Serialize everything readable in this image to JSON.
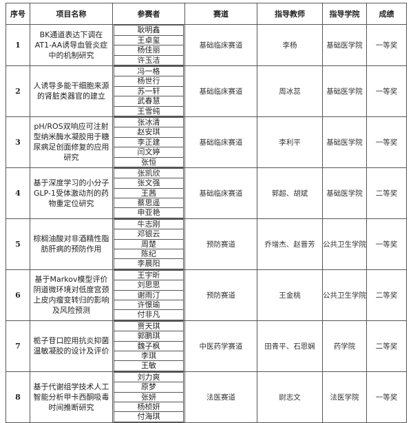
{
  "headers": [
    "序号",
    "项目名称",
    "参赛者",
    "赛道",
    "指导教师",
    "指导学院",
    "成绩"
  ],
  "rows": [
    {
      "no": "1",
      "title": "BK通道表达下调在AT1-AA诱导血管炎症中的机制研究",
      "members": [
        "耿明鑫",
        "王卓玺",
        "杨佳丽",
        "许玉洁"
      ],
      "track": "基础临床赛道",
      "teacher": "李杨",
      "college": "基础医学院",
      "result": "一等奖"
    },
    {
      "no": "2",
      "title": "人诱导多能干细胞来源的肾脏类器官的建立",
      "members": [
        "冯一格",
        "杨世行",
        "苏一轩",
        "武春慧",
        "王雪纯"
      ],
      "track": "基础临床赛道",
      "teacher": "周冰蕊",
      "college": "基础医学院",
      "result": "一等奖"
    },
    {
      "no": "3",
      "title": "pH/ROS双响应可注射型纳米酶水凝胶用于糖尿病足创面修复的应用研究",
      "members": [
        "张冰清",
        "赵安琪",
        "李正建",
        "闫文婷",
        "张恒"
      ],
      "track": "基础临床赛道",
      "teacher": "李利平",
      "college": "基础医学院",
      "result": "一等奖"
    },
    {
      "no": "4",
      "title": "基于深度学习的小分子GLP-1受体激动剂的药物重定位研究",
      "members": [
        "张凯欣",
        "张文强",
        "王茜",
        "蔡思遥",
        "申亚艳"
      ],
      "track": "基础临床赛道",
      "teacher": "郭超、胡斌",
      "college": "基础医学院",
      "result": "二等奖"
    },
    {
      "no": "5",
      "title": "棕榈油酸对非酒精性脂肪肝病的预防作用",
      "members": [
        "牛志刚",
        "邓银云",
        "周楚",
        "陈纪",
        "李晨阳"
      ],
      "track": "预防赛道",
      "teacher": "乔增杰、赵晋芳",
      "college": "公共卫生学院",
      "result": "一等奖"
    },
    {
      "no": "6",
      "title": "基于Markov模型评价阴道微环境对低度宫颈上皮内瘤变转归的影响及风险预测",
      "members": [
        "王宇昕",
        "刘思思",
        "谢雨汀",
        "许憬瑜",
        "付非凡"
      ],
      "track": "预防赛道",
      "teacher": "王金桃",
      "college": "公共卫生学院",
      "result": "二等奖"
    },
    {
      "no": "7",
      "title": "栀子苷口腔用抗炎抑菌温敏凝胶的设计及评价",
      "members": [
        "贾天琪",
        "郭鹏琪",
        "魏子枫",
        "李琪",
        "王敏"
      ],
      "track": "中医药学赛道",
      "teacher": "田青平、石恩娴",
      "college": "药学院",
      "result": "二等奖"
    },
    {
      "no": "8",
      "title": "基于代谢组学技术人工智能分析甲卡西酮吸毒时间推断研究",
      "members": [
        "刘力爽",
        "原梦",
        "张妍",
        "杨桢妍",
        "付海琪"
      ],
      "track": "法医赛道",
      "teacher": "尉志文",
      "college": "法医学院",
      "result": "一等奖"
    }
  ]
}
